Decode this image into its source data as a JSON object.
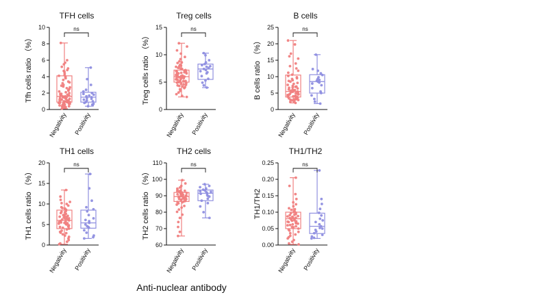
{
  "figure": {
    "x_label": "Anti-nuclear antibody",
    "colors": {
      "negativity": "#f08080",
      "positivity": "#8f8fe0",
      "axis": "#111111"
    }
  },
  "chart_data": [
    {
      "type": "box",
      "title": "TFH cells",
      "ylabel": "Tfh cells ratio （%）",
      "ylim": [
        0,
        10
      ],
      "yticks": [
        0,
        2,
        4,
        6,
        8,
        10
      ],
      "tick_labels": [
        "0",
        "2",
        "4",
        "6",
        "8",
        "10"
      ],
      "categories": [
        "Negativity",
        "Positivity"
      ],
      "significance": "ns",
      "series": [
        {
          "name": "Negativity",
          "min": 0.1,
          "q1": 0.9,
          "median": 1.6,
          "q3": 4.1,
          "max": 8.1,
          "points": [
            8.1,
            6.0,
            5.7,
            5.5,
            5.2,
            5.0,
            4.8,
            4.6,
            4.4,
            4.2,
            4.1,
            4.0,
            3.8,
            3.6,
            3.4,
            3.2,
            3.0,
            2.9,
            2.7,
            2.6,
            2.4,
            2.3,
            2.2,
            2.1,
            2.0,
            1.9,
            1.8,
            1.8,
            1.7,
            1.7,
            1.6,
            1.6,
            1.5,
            1.5,
            1.4,
            1.4,
            1.3,
            1.3,
            1.2,
            1.2,
            1.1,
            1.1,
            1.0,
            1.0,
            0.9,
            0.9,
            0.9,
            0.8,
            0.8,
            0.7,
            0.7,
            0.6,
            0.6,
            0.5,
            0.5,
            0.4,
            0.4,
            0.3,
            0.3,
            0.2,
            0.2,
            0.1,
            2.5,
            3.3,
            1.9,
            1.5,
            1.2,
            0.9,
            0.6,
            2.8,
            3.9,
            4.7,
            1.0,
            0.8
          ]
        },
        {
          "name": "Positivity",
          "min": 0.4,
          "q1": 0.9,
          "median": 1.5,
          "q3": 2.1,
          "max": 5.1,
          "points": [
            5.1,
            3.7,
            3.0,
            2.4,
            2.2,
            2.0,
            1.8,
            1.7,
            1.6,
            1.5,
            1.4,
            1.3,
            1.2,
            1.0,
            0.9,
            0.8,
            0.7,
            0.6,
            0.5,
            0.4,
            1.9,
            1.1
          ]
        }
      ]
    },
    {
      "type": "box",
      "title": "Treg cells",
      "ylabel": "Treg cells ratio （%）",
      "ylim": [
        0,
        15
      ],
      "yticks": [
        0,
        5,
        10,
        15
      ],
      "tick_labels": [
        "0",
        "5",
        "10",
        "15"
      ],
      "categories": [
        "Negativity",
        "Positivity"
      ],
      "significance": "ns",
      "series": [
        {
          "name": "Negativity",
          "min": 2.3,
          "q1": 5.0,
          "median": 6.0,
          "q3": 7.2,
          "max": 12.1,
          "points": [
            12.1,
            11.5,
            10.8,
            10.2,
            9.6,
            9.2,
            8.8,
            8.5,
            8.2,
            8.0,
            7.8,
            7.6,
            7.4,
            7.2,
            7.1,
            7.0,
            6.9,
            6.8,
            6.7,
            6.6,
            6.5,
            6.4,
            6.3,
            6.2,
            6.1,
            6.0,
            6.0,
            5.9,
            5.8,
            5.7,
            5.6,
            5.5,
            5.4,
            5.3,
            5.2,
            5.1,
            5.0,
            4.9,
            4.8,
            4.7,
            4.6,
            4.5,
            4.4,
            4.3,
            4.1,
            3.9,
            3.7,
            3.4,
            3.1,
            2.8,
            2.5,
            2.3,
            6.3,
            5.8,
            6.6,
            7.5,
            5.5,
            4.9,
            6.9,
            5.2,
            6.1,
            7.9,
            4.2,
            8.6
          ]
        },
        {
          "name": "Positivity",
          "min": 4.0,
          "q1": 5.5,
          "median": 7.4,
          "q3": 8.3,
          "max": 10.3,
          "points": [
            10.3,
            9.9,
            9.0,
            8.6,
            8.3,
            8.1,
            7.9,
            7.6,
            7.4,
            7.2,
            7.0,
            6.6,
            6.1,
            5.6,
            5.3,
            4.9,
            4.4,
            4.0,
            7.8,
            6.8
          ]
        }
      ]
    },
    {
      "type": "box",
      "title": "B cells",
      "ylabel": "B cells ratio （%）",
      "ylim": [
        0,
        25
      ],
      "yticks": [
        0,
        5,
        10,
        15,
        20,
        25
      ],
      "tick_labels": [
        "0",
        "5",
        "10",
        "15",
        "20",
        "25"
      ],
      "categories": [
        "Negativity",
        "Positivity"
      ],
      "significance": "ns",
      "series": [
        {
          "name": "Negativity",
          "min": 2.0,
          "q1": 3.8,
          "median": 5.5,
          "q3": 10.5,
          "max": 21.0,
          "points": [
            21.0,
            19.8,
            17.0,
            16.2,
            15.5,
            14.0,
            13.2,
            12.5,
            11.8,
            11.2,
            10.6,
            10.2,
            9.8,
            9.3,
            8.9,
            8.5,
            8.1,
            7.8,
            7.5,
            7.2,
            6.9,
            6.6,
            6.4,
            6.1,
            5.9,
            5.7,
            5.5,
            5.4,
            5.2,
            5.0,
            4.9,
            4.7,
            4.6,
            4.4,
            4.3,
            4.1,
            4.0,
            3.9,
            3.8,
            3.7,
            3.6,
            3.5,
            3.4,
            3.3,
            3.2,
            3.1,
            3.0,
            2.9,
            2.8,
            2.7,
            2.5,
            2.3,
            2.0,
            6.0,
            4.5,
            5.1,
            3.9,
            7.0,
            8.7,
            4.8,
            3.6,
            5.8,
            6.7,
            4.2,
            3.1,
            9.5
          ]
        },
        {
          "name": "Positivity",
          "min": 1.8,
          "q1": 5.0,
          "median": 8.5,
          "q3": 10.6,
          "max": 16.7,
          "points": [
            16.7,
            12.3,
            11.8,
            11.0,
            10.5,
            9.8,
            9.3,
            8.8,
            8.5,
            8.2,
            7.9,
            7.4,
            6.5,
            5.5,
            5.0,
            4.3,
            3.2,
            2.4,
            1.8,
            9.0
          ]
        }
      ]
    },
    {
      "type": "box",
      "title": "TH1 cells",
      "ylabel": "TH1 cells ratio （%）",
      "ylim": [
        0,
        20
      ],
      "yticks": [
        0,
        5,
        10,
        15,
        20
      ],
      "tick_labels": [
        "0",
        "5",
        "10",
        "15",
        "20"
      ],
      "categories": [
        "Negativity",
        "Positivity"
      ],
      "significance": "ns",
      "series": [
        {
          "name": "Negativity",
          "min": 0.2,
          "q1": 4.0,
          "median": 6.0,
          "q3": 8.5,
          "max": 13.4,
          "points": [
            13.4,
            11.8,
            11.0,
            10.5,
            10.0,
            9.6,
            9.2,
            8.9,
            8.6,
            8.3,
            8.0,
            7.8,
            7.6,
            7.3,
            7.1,
            6.9,
            6.7,
            6.5,
            6.3,
            6.2,
            6.0,
            5.9,
            5.7,
            5.6,
            5.4,
            5.3,
            5.1,
            5.0,
            4.8,
            4.6,
            4.4,
            4.2,
            4.0,
            3.8,
            3.5,
            3.2,
            2.9,
            2.6,
            2.3,
            2.0,
            1.6,
            1.2,
            0.8,
            0.4,
            0.2,
            6.4,
            7.5,
            5.2,
            8.1,
            4.5,
            6.8,
            9.0,
            3.0,
            5.5,
            7.0,
            10.2
          ]
        },
        {
          "name": "Positivity",
          "min": 1.6,
          "q1": 4.1,
          "median": 5.4,
          "q3": 8.5,
          "max": 17.3,
          "points": [
            17.3,
            13.8,
            10.8,
            9.2,
            8.7,
            8.2,
            7.3,
            6.5,
            5.8,
            5.4,
            5.0,
            4.6,
            4.2,
            3.6,
            3.0,
            2.3,
            1.9,
            1.6,
            6.1,
            4.4
          ]
        }
      ]
    },
    {
      "type": "box",
      "title": "TH2 cells",
      "ylabel": "TH2 cells ratio （%）",
      "ylim": [
        60,
        110
      ],
      "yticks": [
        60,
        70,
        80,
        90,
        100,
        110
      ],
      "tick_labels": [
        "60",
        "70",
        "80",
        "90",
        "100",
        "110"
      ],
      "categories": [
        "Negativity",
        "Positivity"
      ],
      "significance": "ns",
      "series": [
        {
          "name": "Negativity",
          "min": 65.5,
          "q1": 86.5,
          "median": 89.5,
          "q3": 92.0,
          "max": 99.5,
          "points": [
            99.5,
            97.5,
            96.0,
            95.0,
            94.3,
            93.7,
            93.2,
            92.8,
            92.4,
            92.0,
            91.7,
            91.4,
            91.1,
            90.8,
            90.5,
            90.2,
            90.0,
            89.8,
            89.6,
            89.4,
            89.2,
            89.0,
            88.8,
            88.6,
            88.3,
            88.0,
            87.7,
            87.4,
            87.1,
            86.8,
            86.5,
            86.0,
            85.4,
            84.6,
            83.8,
            82.8,
            81.6,
            80.2,
            78.5,
            76.5,
            74.0,
            71.0,
            68.0,
            65.5,
            90.6,
            89.1,
            91.9,
            88.4,
            92.6,
            87.9,
            90.9,
            86.2,
            93.0,
            89.7
          ]
        },
        {
          "name": "Positivity",
          "min": 76.5,
          "q1": 87.0,
          "median": 91.5,
          "q3": 93.5,
          "max": 97.0,
          "points": [
            97.0,
            96.0,
            95.2,
            94.4,
            93.7,
            93.2,
            92.7,
            92.1,
            91.6,
            91.2,
            90.5,
            89.5,
            88.2,
            87.0,
            85.5,
            83.5,
            80.0,
            76.5,
            92.4,
            90.0
          ]
        }
      ]
    },
    {
      "type": "box",
      "title": "TH1/TH2",
      "ylabel": "TH1/TH2",
      "ylim": [
        0,
        0.25
      ],
      "yticks": [
        0,
        0.05,
        0.1,
        0.15,
        0.2,
        0.25
      ],
      "tick_labels": [
        "0.00",
        "0.05",
        "0.10",
        "0.15",
        "0.20",
        "0.25"
      ],
      "categories": [
        "Negativity",
        "Positivity"
      ],
      "significance": "ns",
      "series": [
        {
          "name": "Negativity",
          "min": 0.002,
          "q1": 0.05,
          "median": 0.08,
          "q3": 0.1,
          "max": 0.205,
          "points": [
            0.205,
            0.18,
            0.155,
            0.14,
            0.13,
            0.124,
            0.118,
            0.112,
            0.107,
            0.103,
            0.1,
            0.097,
            0.094,
            0.091,
            0.088,
            0.086,
            0.084,
            0.082,
            0.08,
            0.078,
            0.076,
            0.074,
            0.072,
            0.07,
            0.068,
            0.066,
            0.063,
            0.06,
            0.057,
            0.054,
            0.05,
            0.047,
            0.044,
            0.04,
            0.036,
            0.032,
            0.028,
            0.024,
            0.02,
            0.015,
            0.01,
            0.005,
            0.002,
            0.083,
            0.071,
            0.092,
            0.065,
            0.079,
            0.098,
            0.055,
            0.087,
            0.109,
            0.061,
            0.075
          ]
        },
        {
          "name": "Positivity",
          "min": 0.02,
          "q1": 0.035,
          "median": 0.057,
          "q3": 0.097,
          "max": 0.227,
          "points": [
            0.227,
            0.14,
            0.125,
            0.11,
            0.098,
            0.09,
            0.08,
            0.07,
            0.063,
            0.057,
            0.052,
            0.046,
            0.041,
            0.036,
            0.031,
            0.026,
            0.022,
            0.02,
            0.075,
            0.05
          ]
        }
      ]
    }
  ]
}
